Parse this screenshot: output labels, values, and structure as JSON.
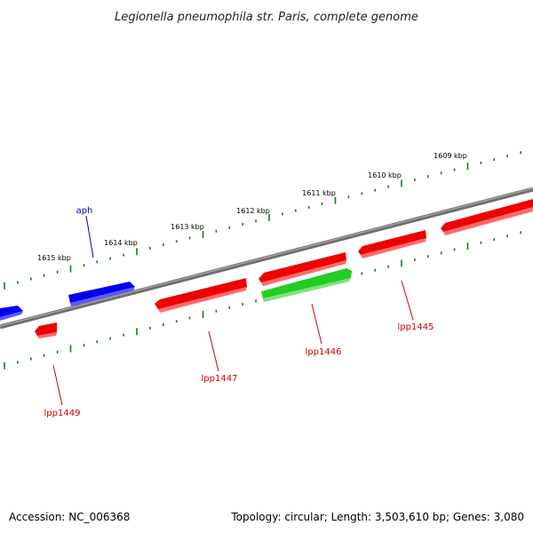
{
  "title": "Legionella pneumophila str. Paris, complete genome",
  "footer": {
    "accession": "Accession: NC_006368",
    "summary": "Topology: circular; Length: 3,503,610 bp; Genes: 3,080"
  },
  "scale_labels": [
    "1609 kbp",
    "1610 kbp",
    "1611 kbp",
    "1612 kbp",
    "1613 kbp",
    "1614 kbp",
    "1615 kbp"
  ],
  "gene_labels": [
    {
      "id": "aph",
      "text": "aph",
      "color": "#0000cc"
    },
    {
      "id": "lpp1445",
      "text": "lpp1445",
      "color": "#cc0000"
    },
    {
      "id": "lpp1446",
      "text": "lpp1446",
      "color": "#cc0000"
    },
    {
      "id": "lpp1447",
      "text": "lpp1447",
      "color": "#cc0000"
    },
    {
      "id": "lpp1449",
      "text": "lpp1449",
      "color": "#cc0000"
    }
  ],
  "colors": {
    "forward_gene": "#0000ee",
    "reverse_gene": "#ee0000",
    "rna_gene": "#22cc22",
    "backbone": "#7a7a7a",
    "ticks": "#1a7a1a"
  }
}
